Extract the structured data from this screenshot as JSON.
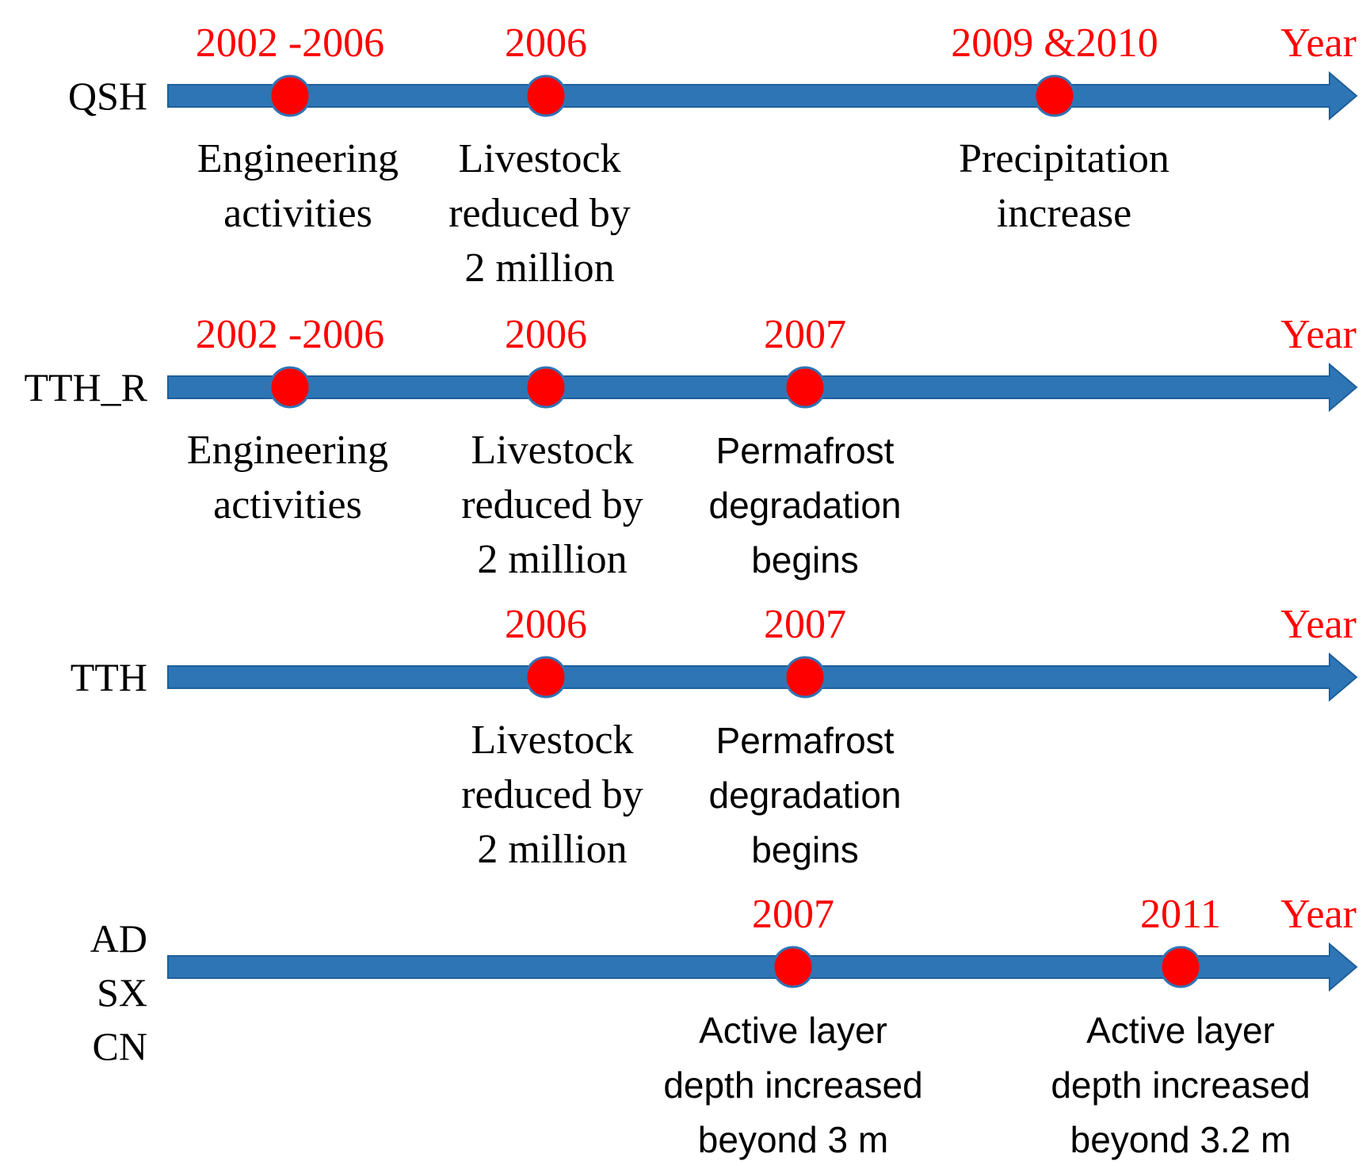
{
  "colors": {
    "arrow": "#2E75B6",
    "arrow_stroke": "#1F5F99",
    "dot": "#FF0000",
    "dot_stroke": "#2E75B6",
    "year_text": "#FF0000",
    "label_text": "#000000"
  },
  "timelines": [
    {
      "site": [
        "QSH"
      ],
      "year_label": "Year",
      "events": [
        {
          "year": "2002 -2006",
          "label": [
            "Engineering",
            "activities"
          ],
          "font": "serif"
        },
        {
          "year": "2006",
          "label": [
            "Livestock",
            "reduced by",
            "2 million"
          ],
          "font": "serif"
        },
        {
          "year": "2009 &2010",
          "label": [
            "Precipitation",
            "increase"
          ],
          "font": "serif"
        }
      ]
    },
    {
      "site": [
        "TTH_R"
      ],
      "year_label": "Year",
      "events": [
        {
          "year": "2002 -2006",
          "label": [
            "Engineering",
            "activities"
          ],
          "font": "serif"
        },
        {
          "year": "2006",
          "label": [
            "Livestock",
            "reduced by",
            "2 million"
          ],
          "font": "serif"
        },
        {
          "year": "2007",
          "label": [
            "Permafrost",
            "degradation",
            "begins"
          ],
          "font": "sans"
        }
      ]
    },
    {
      "site": [
        "TTH"
      ],
      "year_label": "Year",
      "events": [
        {
          "year": "2006",
          "label": [
            "Livestock",
            "reduced by",
            "2 million"
          ],
          "font": "serif"
        },
        {
          "year": "2007",
          "label": [
            "Permafrost",
            "degradation",
            "begins"
          ],
          "font": "sans"
        }
      ]
    },
    {
      "site": [
        "AD",
        "SX",
        "CN"
      ],
      "year_label": "Year",
      "events": [
        {
          "year": "2007",
          "label": [
            "Active layer",
            "depth increased",
            "beyond 3 m"
          ],
          "font": "sans"
        },
        {
          "year": "2011",
          "label": [
            "Active layer",
            "depth increased",
            "beyond 3.2 m"
          ],
          "font": "sans"
        }
      ]
    }
  ]
}
